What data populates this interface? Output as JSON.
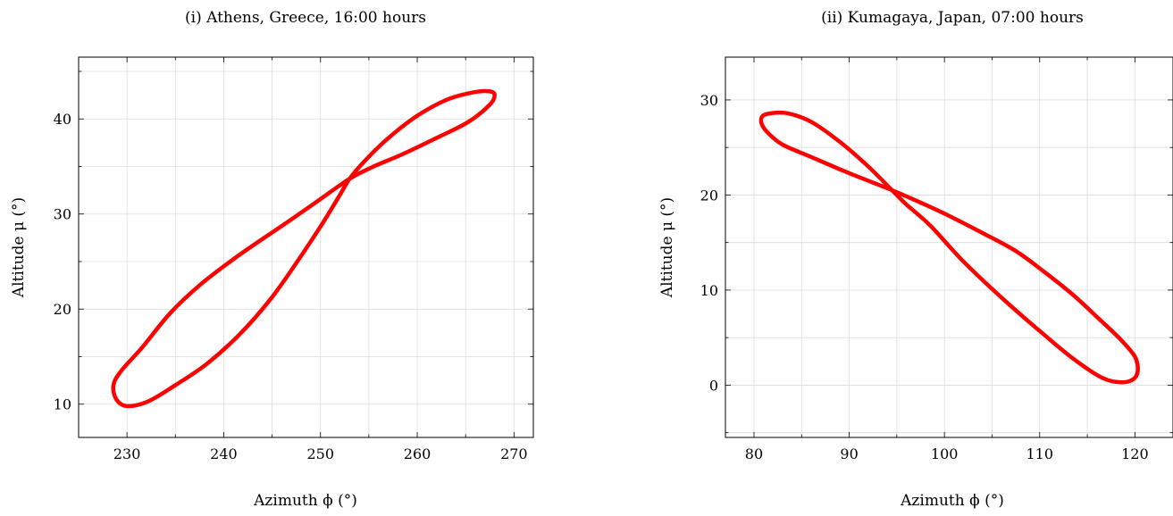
{
  "chart_data": [
    {
      "type": "line",
      "title": "(i) Athens, Greece, 16:00 hours",
      "xlabel": "Azimuth ϕ (°)",
      "ylabel": "Altitude μ (°)",
      "xlim": [
        225,
        272
      ],
      "ylim": [
        6.5,
        46.5
      ],
      "xticks": [
        230,
        240,
        250,
        260,
        270
      ],
      "yticks": [
        10,
        20,
        30,
        40
      ],
      "grid": true,
      "line_color": "#ff0000",
      "series": [
        {
          "x": [
            253.0,
            249.9,
            246.8,
            243.6,
            240.8,
            237.5,
            234.4,
            231.6,
            229.4,
            228.6,
            228.9,
            230.0,
            232.2,
            235.0,
            238.2,
            241.6,
            244.8,
            247.6,
            250.2,
            252.0,
            253.0,
            254.5,
            256.8,
            259.8,
            263.0,
            265.8,
            267.5,
            268.0,
            267.5,
            265.3,
            262.0,
            258.5,
            255.5,
            253.0
          ],
          "y": [
            33.7,
            31.5,
            29.3,
            27.1,
            25.1,
            22.5,
            19.5,
            16.0,
            13.5,
            12.0,
            10.5,
            9.8,
            10.3,
            12.0,
            14.2,
            17.3,
            21.0,
            25.0,
            29.0,
            32.0,
            33.7,
            35.5,
            37.8,
            40.2,
            42.0,
            42.8,
            42.9,
            42.5,
            41.5,
            39.7,
            38.0,
            36.3,
            35.0,
            33.7
          ]
        }
      ]
    },
    {
      "type": "line",
      "title": "(ii) Kumagaya, Japan, 07:00 hours",
      "xlabel": "Azimuth ϕ (°)",
      "ylabel": "Altitude μ (°)",
      "xlim": [
        77,
        124
      ],
      "ylim": [
        -5.5,
        34.5
      ],
      "xticks": [
        80,
        90,
        100,
        110,
        120
      ],
      "yticks": [
        0,
        10,
        20,
        30
      ],
      "grid": true,
      "line_color": "#ff0000",
      "series": [
        {
          "x": [
            94.5,
            97.5,
            100.5,
            104.0,
            107.5,
            110.5,
            113.5,
            116.2,
            118.5,
            120.0,
            120.3,
            119.8,
            118.5,
            116.5,
            113.5,
            110.0,
            106.0,
            102.0,
            98.5,
            96.0,
            94.5,
            92.0,
            89.0,
            86.0,
            83.5,
            81.8,
            80.9,
            80.8,
            81.5,
            83.0,
            86.0,
            89.5,
            92.5,
            94.5
          ],
          "y": [
            20.5,
            19.2,
            17.8,
            16.0,
            14.1,
            11.9,
            9.5,
            7.0,
            4.8,
            3.0,
            1.5,
            0.6,
            0.3,
            0.8,
            2.8,
            5.7,
            9.2,
            13.0,
            16.8,
            19.0,
            20.5,
            23.0,
            25.6,
            27.7,
            28.6,
            28.6,
            28.3,
            27.5,
            26.5,
            25.3,
            24.0,
            22.5,
            21.3,
            20.5
          ]
        }
      ]
    }
  ]
}
